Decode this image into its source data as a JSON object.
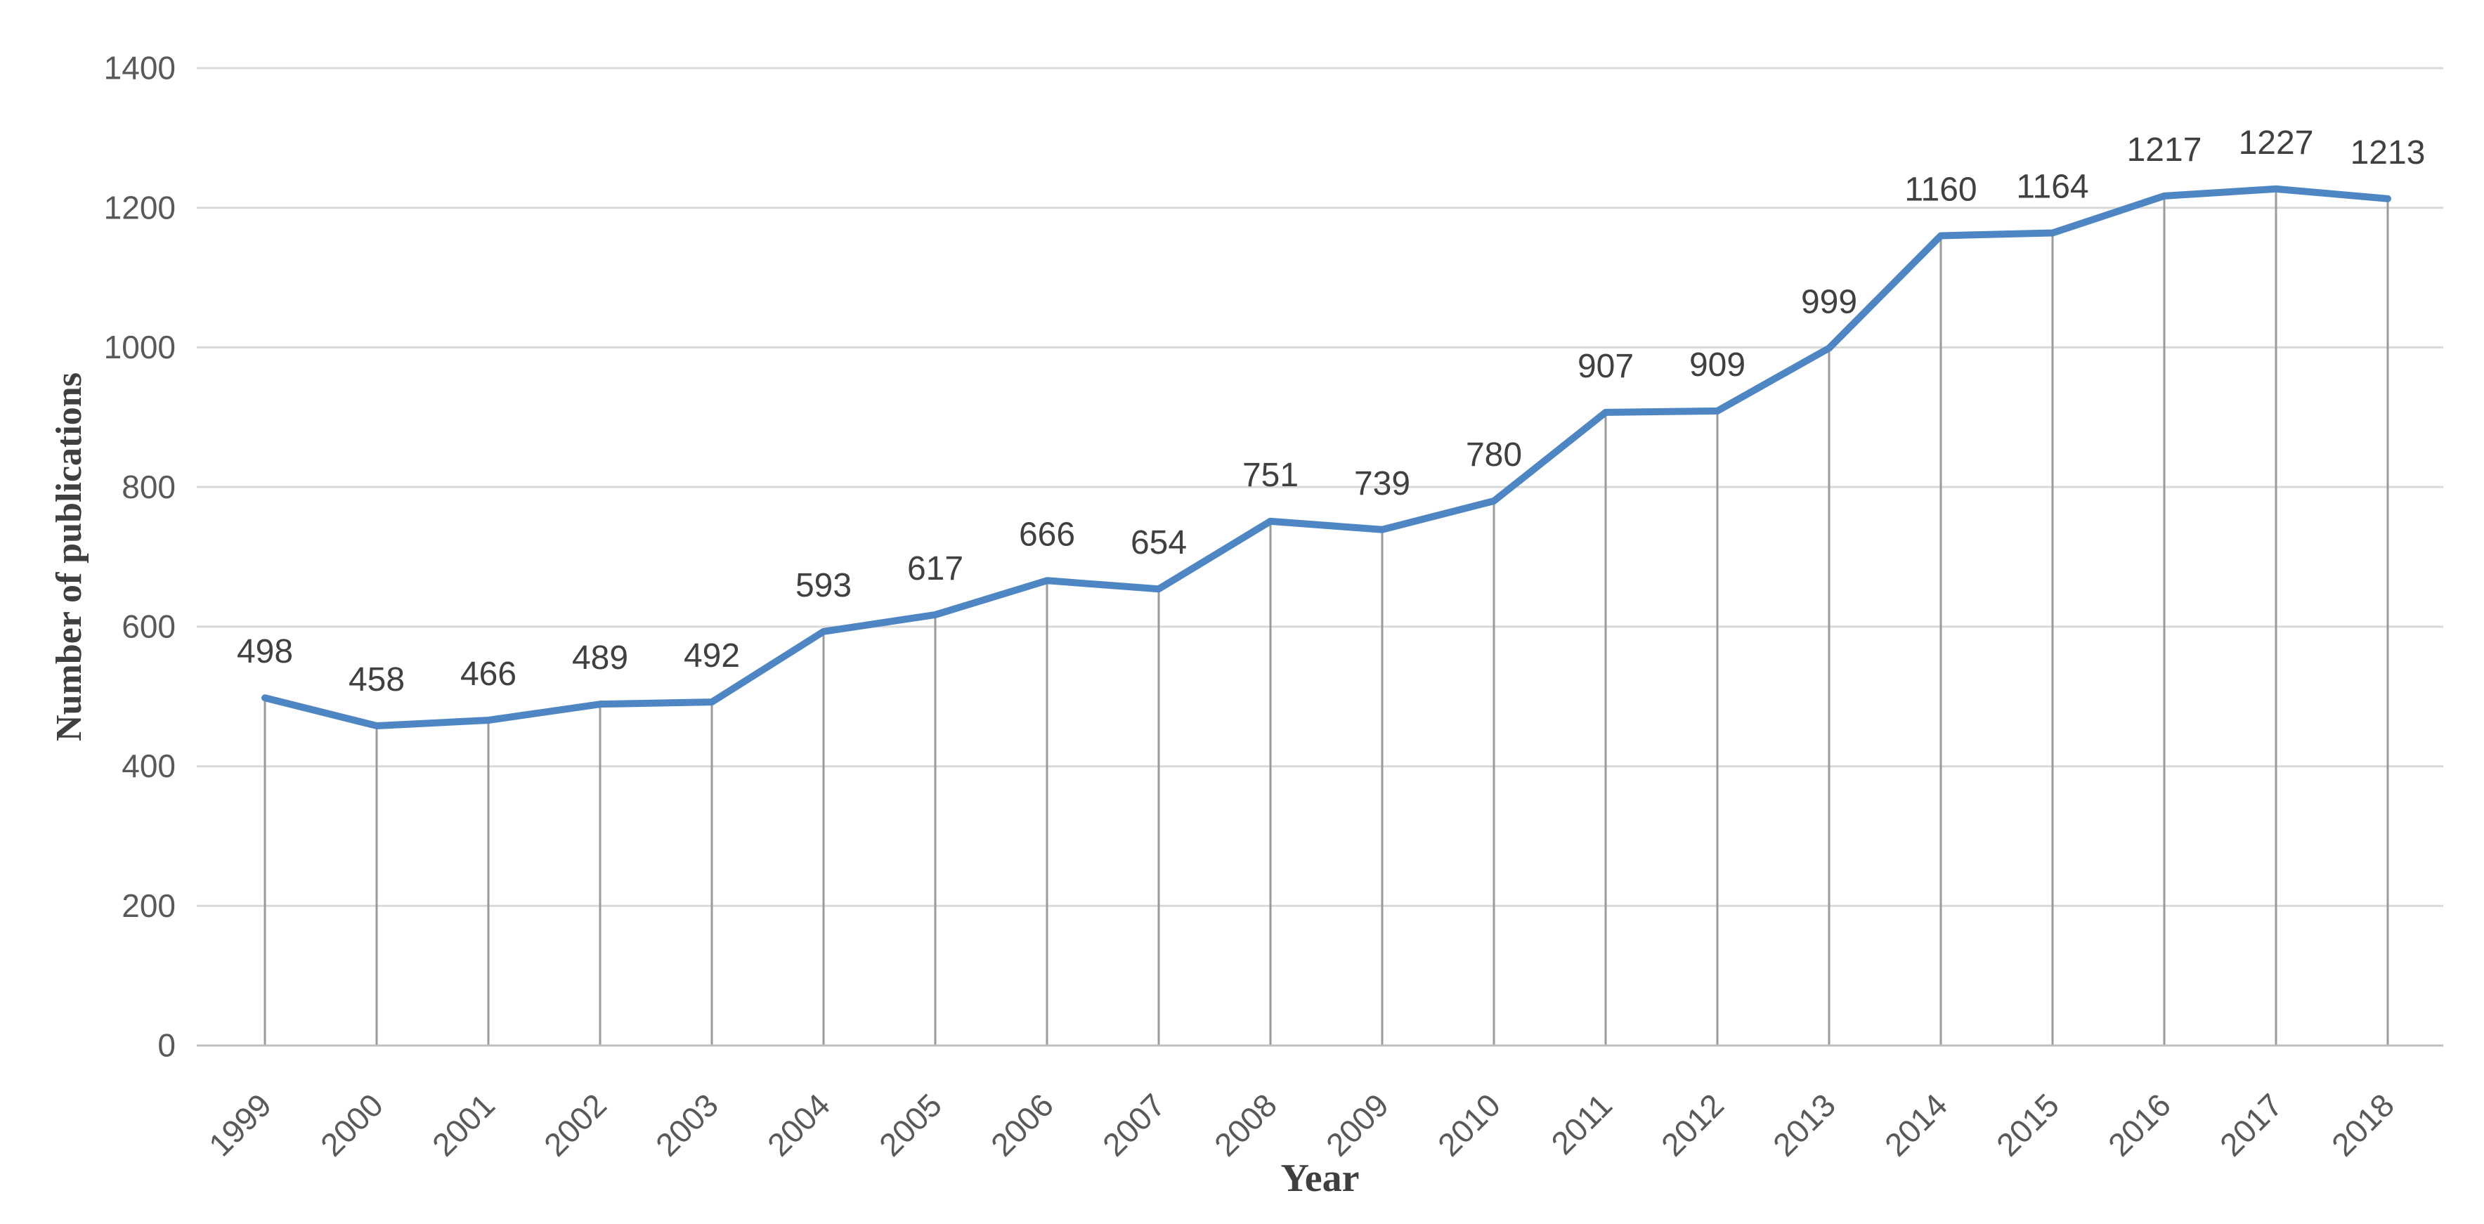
{
  "chart_data": {
    "type": "line",
    "title": "",
    "xlabel": "Year",
    "ylabel": "Number of publications",
    "x": [
      "1999",
      "2000",
      "2001",
      "2002",
      "2003",
      "2004",
      "2005",
      "2006",
      "2007",
      "2008",
      "2009",
      "2010",
      "2011",
      "2012",
      "2013",
      "2014",
      "2015",
      "2016",
      "2017",
      "2018"
    ],
    "series": [
      {
        "name": "Number of publications",
        "values": [
          498,
          458,
          466,
          489,
          492,
          593,
          617,
          666,
          654,
          751,
          739,
          780,
          907,
          909,
          999,
          1160,
          1164,
          1217,
          1227,
          1213
        ]
      }
    ],
    "data_labels": [
      498,
      458,
      466,
      489,
      492,
      593,
      617,
      666,
      654,
      751,
      739,
      780,
      907,
      909,
      999,
      1160,
      1164,
      1217,
      1227,
      1213
    ],
    "ylim": [
      0,
      1400
    ],
    "yticks": [
      0,
      200,
      400,
      600,
      800,
      1000,
      1200,
      1400
    ],
    "grid": "horizontal",
    "drop_lines": true,
    "markers": false,
    "legend": "none",
    "x_tick_rotation_deg": 45,
    "colors": {
      "series_line": "#4E86C4",
      "h_gridline": "#D9D9D9",
      "x_axis_line": "#BFBFBF",
      "drop_line": "#9B9B9B",
      "tick_label": "#595959",
      "data_label": "#404040",
      "axis_title": "#3F3F3F",
      "background": "#FFFFFF"
    }
  }
}
